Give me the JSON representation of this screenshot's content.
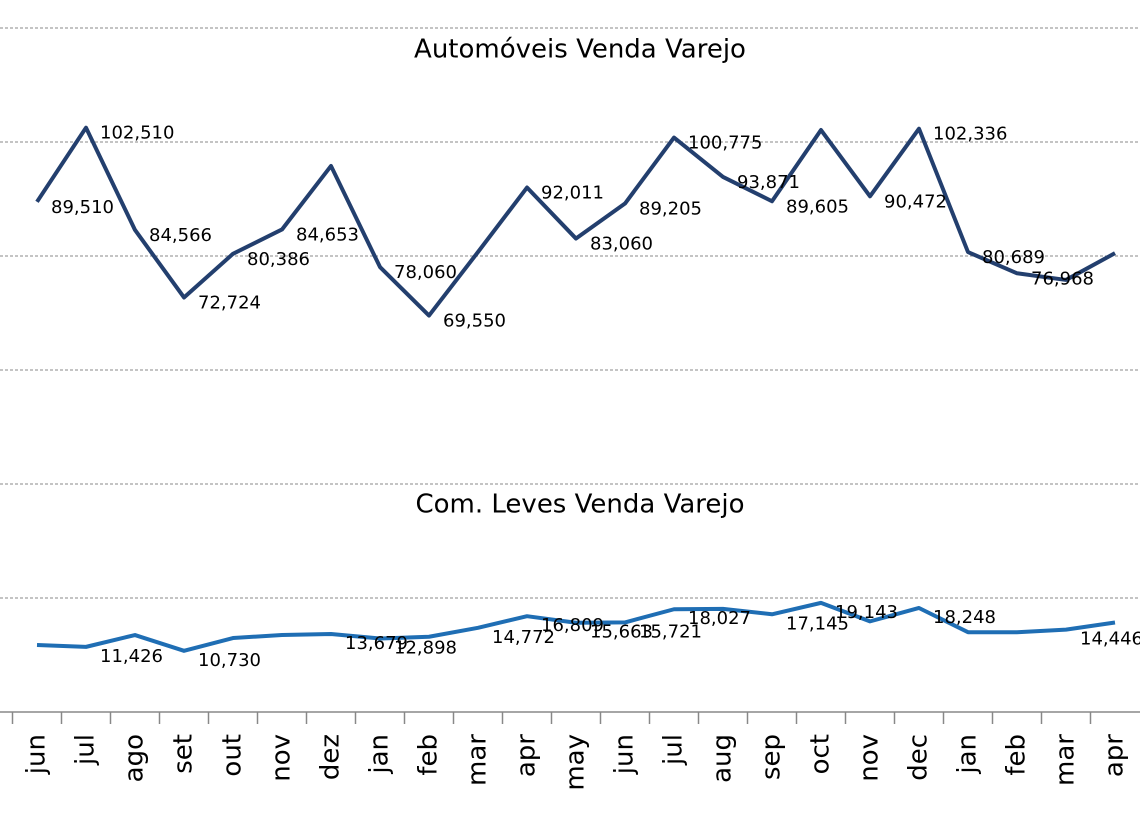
{
  "chart_data": {
    "type": "line",
    "categories": [
      "jun",
      "jul",
      "ago",
      "set",
      "out",
      "nov",
      "dez",
      "jan",
      "feb",
      "mar",
      "apr",
      "may",
      "jun",
      "jul",
      "aug",
      "sep",
      "oct",
      "nov",
      "dec",
      "jan",
      "feb",
      "mar",
      "apr"
    ],
    "ylim": [
      0,
      120000
    ],
    "yticks": [
      0,
      20000,
      40000,
      60000,
      80000,
      100000,
      120000
    ],
    "grid": true,
    "series": [
      {
        "name": "Automóveis Venda Varejo",
        "color": "#233f6e",
        "values": [
          89510,
          102510,
          84566,
          72724,
          80386,
          84653,
          95800,
          78060,
          69550,
          80700,
          92011,
          83060,
          89205,
          100775,
          93871,
          89605,
          102100,
          90472,
          102336,
          80689,
          76968,
          75800,
          80500
        ],
        "value_labels": [
          "89,510",
          "102,510",
          "84,566",
          "72,724",
          "80,386",
          "84,653",
          null,
          "78,060",
          "69,550",
          null,
          "92,011",
          "83,060",
          "89,205",
          "100,775",
          "93,871",
          "89,605",
          null,
          "90,472",
          "102,336",
          "80,689",
          "76,968",
          null,
          null
        ]
      },
      {
        "name": "Com. Leves Venda Varejo",
        "color": "#1f6eb4",
        "values": [
          11750,
          11426,
          13500,
          10730,
          12980,
          13500,
          13679,
          12898,
          13200,
          14772,
          16809,
          15663,
          15721,
          18027,
          18100,
          17145,
          19143,
          15900,
          18248,
          14000,
          14000,
          14446,
          15700
        ],
        "value_labels": [
          null,
          "11,426",
          null,
          "10,730",
          null,
          null,
          "13,679",
          "12,898",
          null,
          "14,772",
          "16,809",
          "15,663",
          "15,721",
          "18,027",
          null,
          "17,145",
          "19,143",
          null,
          "18,248",
          null,
          null,
          "14,446",
          null
        ]
      }
    ]
  }
}
